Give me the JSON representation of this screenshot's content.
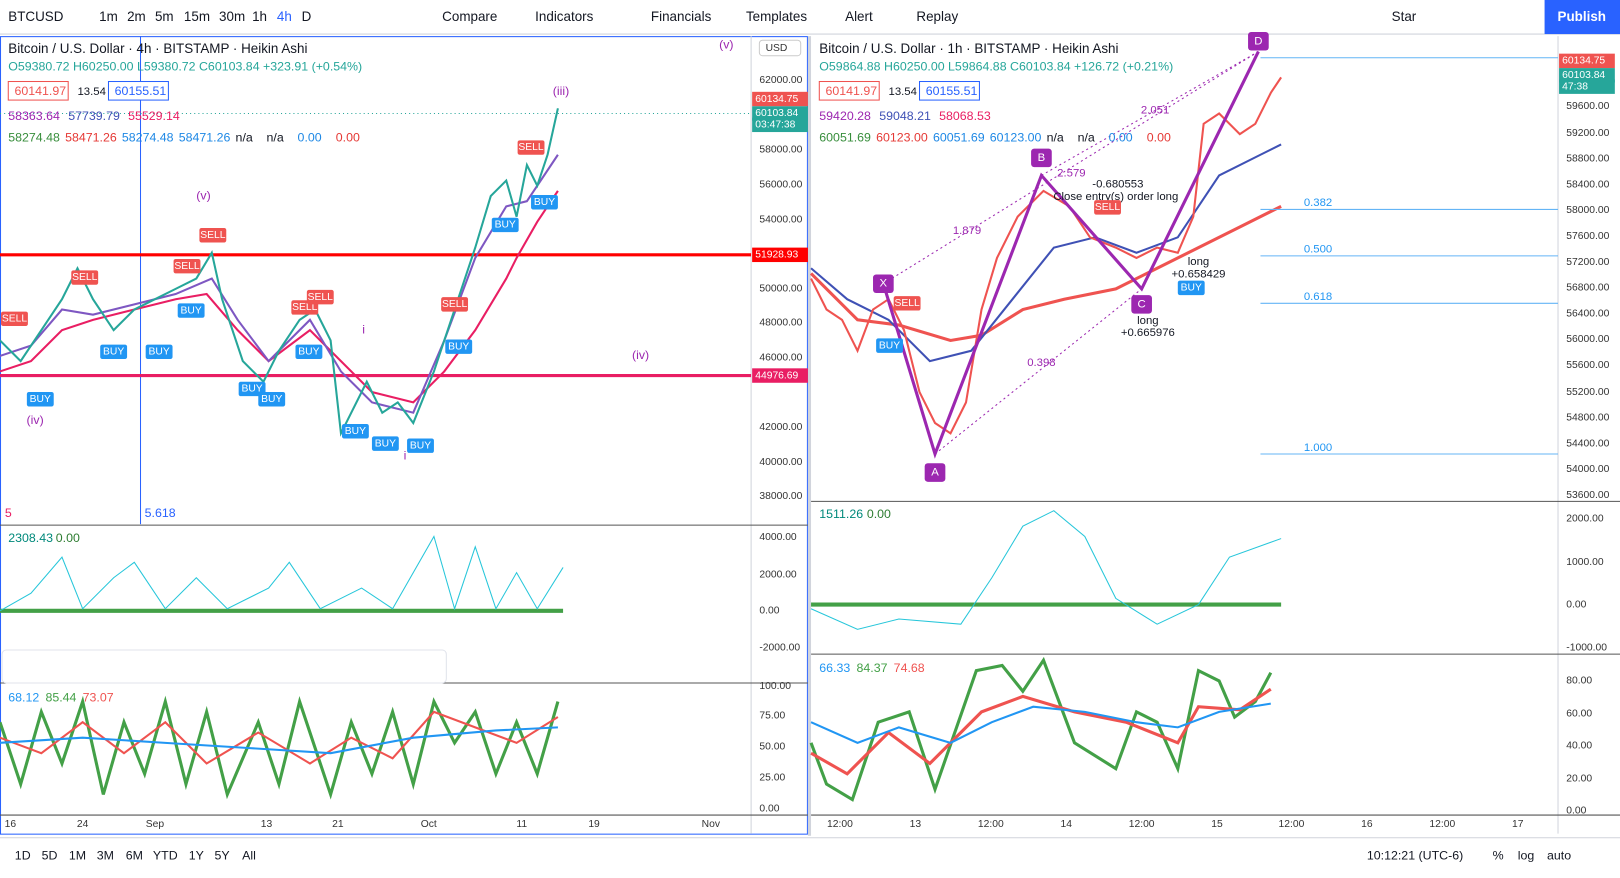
{
  "toolbar": {
    "symbol": "BTCUSD",
    "intervals": [
      "1m",
      "2m",
      "5m",
      "15m",
      "30m",
      "1h",
      "4h",
      "D"
    ],
    "buttons": [
      "Compare",
      "Indicators",
      "Financials",
      "Templates",
      "Alert",
      "Replay"
    ],
    "layout": "Star",
    "publish": "Publish"
  },
  "left_chart": {
    "title": "Bitcoin / U.S. Dollar · 4h · BITSTAMP · Heikin Ashi",
    "ohlc": "O59380.72 H60250.00 L59380.72 C60103.84 +323.91 (+0.54%)",
    "bid": "60141.97",
    "spread": "13.54",
    "ask": "60155.51",
    "ind1": [
      "58363.64",
      "57739.79",
      "55529.14"
    ],
    "ind2": [
      "58274.48",
      "58471.26",
      "58274.48",
      "58471.26",
      "n/a",
      "n/a",
      "0.00",
      "0.00"
    ],
    "currency": "USD",
    "price_axis": [
      "62000.00",
      "58000.00",
      "56000.00",
      "54000.00",
      "50000.00",
      "48000.00",
      "46000.00",
      "42000.00",
      "40000.00",
      "38000.00"
    ],
    "price_flags": [
      "60134.75",
      "60103.84",
      "03:47:38",
      "51928.93",
      "44976.69"
    ],
    "annotations": [
      "(v)",
      "(iii)",
      "(v)",
      "i",
      "(iv)",
      "i",
      "5.618",
      "5",
      "(iv)"
    ],
    "time_axis": [
      "16",
      "24",
      "Sep",
      "13",
      "21",
      "Oct",
      "11",
      "19",
      "Nov"
    ],
    "macd_legend": [
      "2308.43",
      "0.00"
    ],
    "macd_axis": [
      "4000.00",
      "2000.00",
      "0.00",
      "-2000.00"
    ],
    "rsi_legend": [
      "68.12",
      "85.44",
      "73.07"
    ],
    "rsi_axis": [
      "100.00",
      "75.00",
      "50.00",
      "25.00",
      "0.00"
    ]
  },
  "right_chart": {
    "title": "Bitcoin / U.S. Dollar · 1h · BITSTAMP · Heikin Ashi",
    "ohlc": "O59864.88 H60250.00 L59864.88 C60103.84 +126.72 (+0.21%)",
    "bid": "60141.97",
    "spread": "13.54",
    "ask": "60155.51",
    "ind1": [
      "59420.28",
      "59048.21",
      "58068.53"
    ],
    "ind2": [
      "60051.69",
      "60123.00",
      "60051.69",
      "60123.00",
      "n/a",
      "n/a",
      "0.00",
      "0.00"
    ],
    "price_axis": [
      "59600.00",
      "59200.00",
      "58800.00",
      "58400.00",
      "58000.00",
      "57600.00",
      "57200.00",
      "56800.00",
      "56400.00",
      "56000.00",
      "55600.00",
      "55200.00",
      "54800.00",
      "54400.00",
      "54000.00",
      "53600.00"
    ],
    "price_flags": [
      "60134.75",
      "60103.84",
      "47:38"
    ],
    "fib_levels": [
      "0.382",
      "0.500",
      "0.618",
      "1.000"
    ],
    "pattern_points": [
      "X",
      "A",
      "B",
      "C",
      "D"
    ],
    "ratios": [
      "2.051",
      "2.579",
      "1.879",
      "0.398"
    ],
    "notes": [
      "Close entry(s) order long",
      "-0.680553",
      "long",
      "+0.665976",
      "long",
      "+0.658429"
    ],
    "time_axis": [
      "12:00",
      "13",
      "12:00",
      "14",
      "12:00",
      "15",
      "12:00",
      "16",
      "12:00",
      "17"
    ],
    "macd_legend": [
      "1511.26",
      "0.00"
    ],
    "macd_axis": [
      "2000.00",
      "1000.00",
      "0.00",
      "-1000.00"
    ],
    "rsi_legend": [
      "66.33",
      "84.37",
      "74.68"
    ],
    "rsi_axis": [
      "80.00",
      "60.00",
      "40.00",
      "20.00",
      "0.00"
    ]
  },
  "signals": {
    "buy": "BUY",
    "sell": "SELL"
  },
  "bottom_bar": {
    "ranges": [
      "1D",
      "5D",
      "1M",
      "3M",
      "6M",
      "YTD",
      "1Y",
      "5Y",
      "All"
    ],
    "clock": "10:12:21 (UTC-6)",
    "options": [
      "%",
      "log",
      "auto"
    ]
  }
}
